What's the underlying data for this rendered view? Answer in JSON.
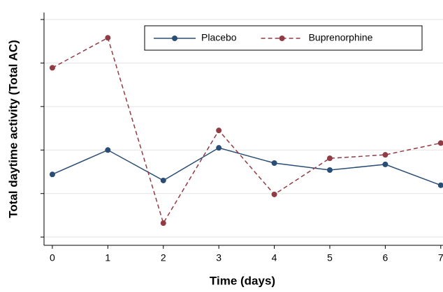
{
  "chart_data": {
    "type": "line",
    "x_label": "Time (days)",
    "y_label": "Total daytime activity (Total AC)",
    "x": [
      0,
      1,
      2,
      3,
      4,
      5,
      6,
      7
    ],
    "series": [
      {
        "name": "Placebo",
        "color": "#2a4d75",
        "dash": false,
        "values": [
          1.44,
          2.0,
          1.3,
          2.05,
          1.7,
          1.54,
          1.67,
          1.19
        ]
      },
      {
        "name": "Buprenorphine",
        "color": "#913b45",
        "dash": true,
        "values": [
          3.89,
          4.58,
          0.32,
          2.45,
          0.98,
          1.81,
          1.89,
          2.16
        ]
      }
    ],
    "xlim": [
      -0.15,
      7.04
    ],
    "xticks": [
      0,
      1,
      2,
      3,
      4,
      5,
      6,
      7
    ],
    "ylim": [
      -0.19,
      5.16
    ],
    "yticks": [
      0,
      1,
      2,
      3,
      4,
      5
    ],
    "grid": true,
    "legend": "top"
  }
}
